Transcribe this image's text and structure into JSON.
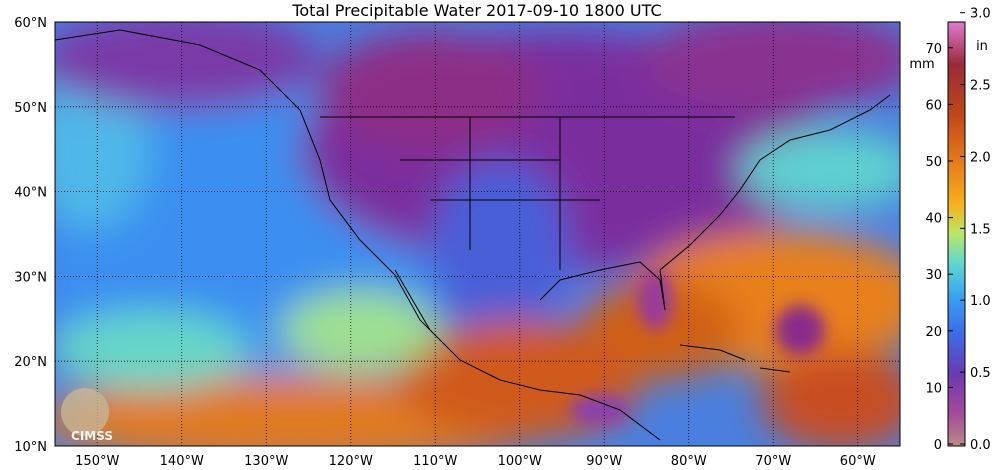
{
  "title": "Total Precipitable Water  2017-09-10 1800 UTC",
  "lat_labels": [
    "60°N",
    "50°N",
    "40°N",
    "30°N",
    "20°N",
    "10°N"
  ],
  "lon_labels": [
    "150°W",
    "140°W",
    "130°W",
    "120°W",
    "110°W",
    "100°W",
    "90°W",
    "80°W",
    "70°W",
    "60°W"
  ],
  "colorbar": {
    "mm_unit": "mm",
    "in_unit": "in",
    "mm_labels": [
      "70",
      "60",
      "50",
      "40",
      "30",
      "20",
      "10",
      "0"
    ],
    "in_labels": [
      "3.0",
      "2.5",
      "2.0",
      "1.5",
      "1.0",
      "0.5",
      "0.0"
    ]
  },
  "logo": "CIMSS"
}
